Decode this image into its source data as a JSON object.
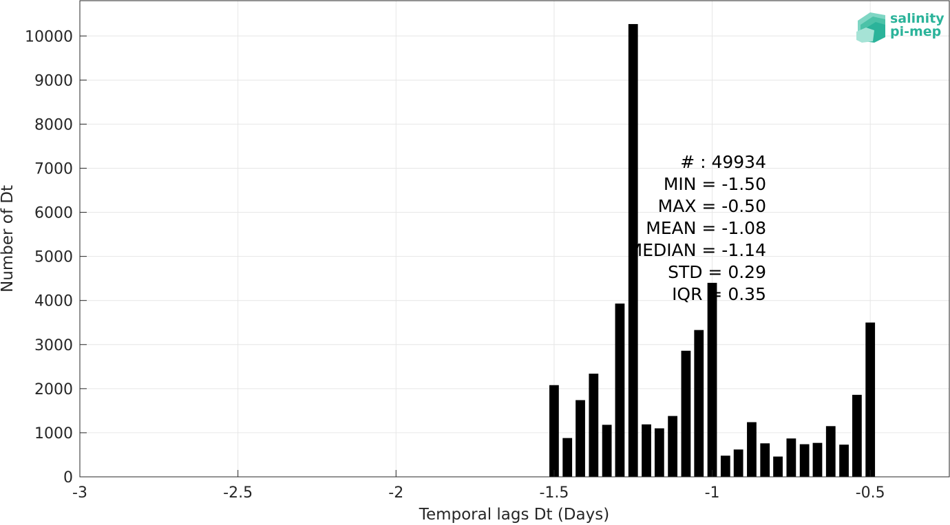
{
  "chart_data": {
    "type": "bar",
    "xlabel": "Temporal lags Dt (Days)",
    "ylabel": "Number of Dt",
    "xlim": [
      -3,
      -0.25
    ],
    "ylim": [
      0,
      10800
    ],
    "x_ticks": [
      -3,
      -2.5,
      -2,
      -1.5,
      -1,
      -0.5
    ],
    "x_tick_labels": [
      "-3",
      "-2.5",
      "-2",
      "-1.5",
      "-1",
      "-0.5"
    ],
    "y_ticks": [
      0,
      1000,
      2000,
      3000,
      4000,
      5000,
      6000,
      7000,
      8000,
      9000,
      10000
    ],
    "y_tick_labels": [
      "0",
      "1000",
      "2000",
      "3000",
      "4000",
      "5000",
      "6000",
      "7000",
      "8000",
      "9000",
      "10000"
    ],
    "grid": true,
    "bar_color": "#000000",
    "bar_width": 0.03,
    "x": [
      -1.5,
      -1.458,
      -1.417,
      -1.375,
      -1.333,
      -1.292,
      -1.25,
      -1.208,
      -1.167,
      -1.125,
      -1.083,
      -1.042,
      -1.0,
      -0.958,
      -0.917,
      -0.875,
      -0.833,
      -0.792,
      -0.75,
      -0.708,
      -0.667,
      -0.625,
      -0.583,
      -0.542,
      -0.5
    ],
    "values": [
      2080,
      880,
      1740,
      2340,
      1180,
      3930,
      10270,
      1190,
      1100,
      1380,
      2860,
      3330,
      4400,
      480,
      620,
      1240,
      760,
      460,
      870,
      740,
      770,
      1150,
      730,
      1860,
      3500
    ]
  },
  "stats": {
    "lines": [
      "# : 49934",
      "MIN = -1.50",
      "MAX =  -0.50",
      "MEAN = -1.08",
      "MEDIAN = -1.14",
      "STD = 0.29",
      "IQR = 0.35"
    ]
  },
  "logo": {
    "line1": "salinity",
    "line2": "pi-mep",
    "color": "#2bb39a"
  }
}
